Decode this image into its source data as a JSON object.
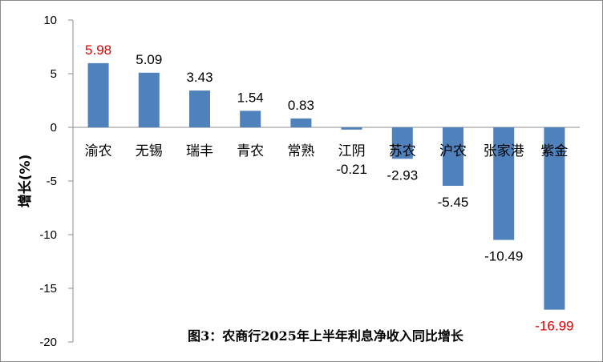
{
  "chart_data": {
    "type": "bar",
    "title": "图3：农商行2025年上半年利息净收入同比增长",
    "ylabel": "增长(%)",
    "xlabel": "",
    "categories": [
      "渝农",
      "无锡",
      "瑞丰",
      "青农",
      "常熟",
      "江阴",
      "苏农",
      "沪农",
      "张家港",
      "紫金"
    ],
    "values": [
      5.98,
      5.09,
      3.43,
      1.54,
      0.83,
      -0.21,
      -2.93,
      -5.45,
      -10.49,
      -16.99
    ],
    "value_labels": [
      "5.98",
      "5.09",
      "3.43",
      "1.54",
      "0.83",
      "-0.21",
      "-2.93",
      "-5.45",
      "-10.49",
      "-16.99"
    ],
    "ylim": [
      -20,
      10
    ],
    "yticks": [
      10,
      5,
      0,
      -5,
      -10,
      -15,
      -20
    ],
    "grid": false,
    "legend": "none",
    "colors": {
      "bar": "#4f81bd",
      "highlight_label": "#e00000",
      "default_label": "#000000"
    },
    "highlighted": [
      "渝农",
      "紫金"
    ]
  }
}
